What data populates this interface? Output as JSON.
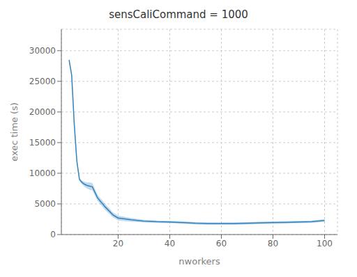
{
  "chart_data": {
    "type": "line",
    "title": "sensCaliCommand = 1000",
    "xlabel": "nworkers",
    "ylabel": "exec time (s)",
    "x": [
      1,
      2,
      3,
      4,
      5,
      6,
      7,
      8,
      9,
      10,
      12,
      15,
      18,
      20,
      25,
      30,
      35,
      40,
      45,
      50,
      55,
      60,
      65,
      70,
      75,
      80,
      85,
      90,
      95,
      100
    ],
    "values": [
      28500,
      26000,
      18000,
      12000,
      9000,
      8500,
      8200,
      8000,
      7900,
      7800,
      6000,
      4500,
      3200,
      2700,
      2400,
      2200,
      2100,
      2050,
      1950,
      1850,
      1800,
      1780,
      1800,
      1850,
      1900,
      1950,
      2000,
      2050,
      2100,
      2300
    ],
    "lower": [
      28500,
      26000,
      18000,
      12000,
      8800,
      8200,
      7800,
      7500,
      7300,
      7200,
      5500,
      4000,
      2800,
      2300,
      2100,
      2000,
      1900,
      1850,
      1750,
      1650,
      1600,
      1580,
      1600,
      1650,
      1700,
      1750,
      1800,
      1850,
      1900,
      2100
    ],
    "upper": [
      28500,
      26000,
      18000,
      12000,
      9200,
      8800,
      8600,
      8500,
      8500,
      8400,
      6500,
      5000,
      3600,
      3100,
      2700,
      2400,
      2300,
      2250,
      2150,
      2050,
      2000,
      1980,
      2000,
      2050,
      2100,
      2150,
      2200,
      2250,
      2300,
      2500
    ],
    "xlim": [
      -2,
      105
    ],
    "ylim": [
      0,
      33500
    ],
    "xticks": [
      20,
      40,
      60,
      80,
      100
    ],
    "yticks": [
      0,
      5000,
      10000,
      15000,
      20000,
      25000,
      30000
    ]
  }
}
